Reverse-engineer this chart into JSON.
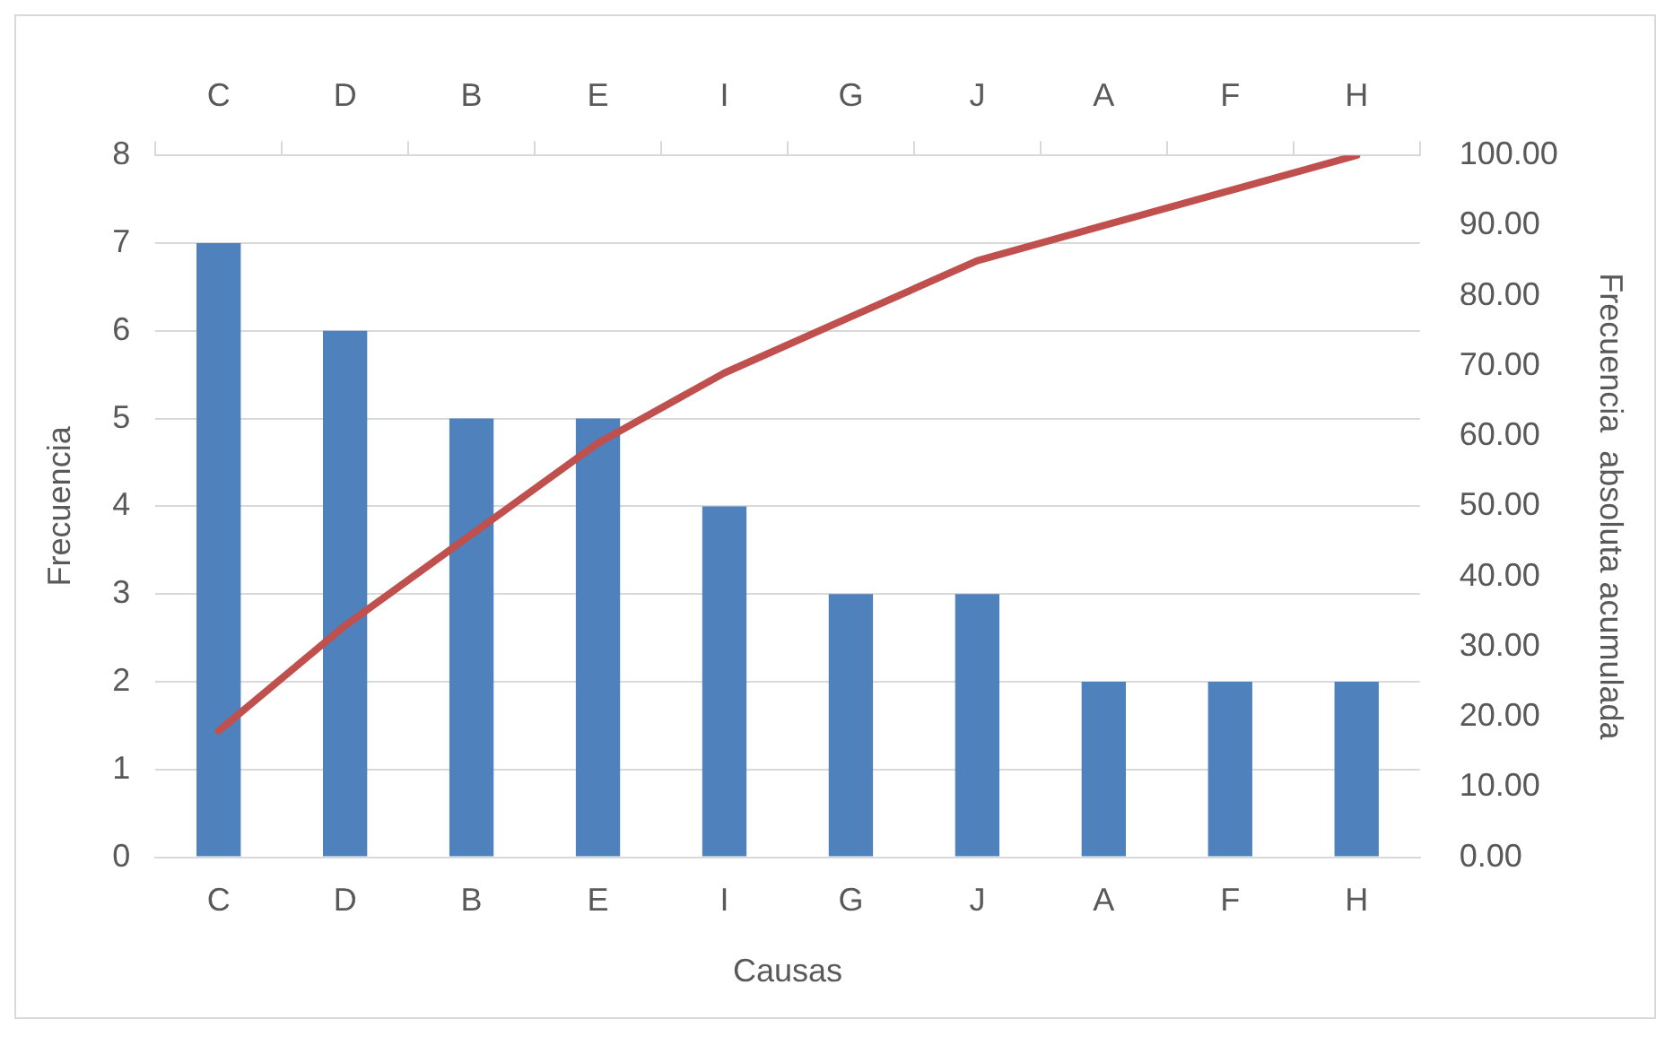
{
  "chart_data": {
    "type": "bar",
    "xlabel": "Causas",
    "ylabel": "Frecuencia",
    "y2label": "Frecuencia  absoluta acumulada",
    "categories": [
      "C",
      "D",
      "B",
      "E",
      "I",
      "G",
      "J",
      "A",
      "F",
      "H"
    ],
    "series": [
      {
        "type": "bar",
        "color": "#4f81bd",
        "values": [
          7,
          6,
          5,
          5,
          4,
          3,
          3,
          2,
          2,
          2
        ]
      },
      {
        "type": "line",
        "axis": "y2",
        "color": "#c0504d",
        "marker": "none",
        "values": [
          18,
          33,
          46,
          59,
          69,
          77,
          85,
          90,
          95,
          100
        ]
      }
    ],
    "ylim": [
      0,
      8
    ],
    "yticks": [
      0,
      1,
      2,
      3,
      4,
      5,
      6,
      7,
      8
    ],
    "y2lim": [
      0,
      100
    ],
    "y2ticks": [
      {
        "value": 0,
        "label": "0.00"
      },
      {
        "value": 10,
        "label": "10.00"
      },
      {
        "value": 20,
        "label": "20.00"
      },
      {
        "value": 30,
        "label": "30.00"
      },
      {
        "value": 40,
        "label": "40.00"
      },
      {
        "value": 50,
        "label": "50.00"
      },
      {
        "value": 60,
        "label": "60.00"
      },
      {
        "value": 70,
        "label": "70.00"
      },
      {
        "value": 80,
        "label": "80.00"
      },
      {
        "value": 90,
        "label": "90.00"
      },
      {
        "value": 100,
        "label": "100.00"
      }
    ],
    "grid": "y",
    "legend": false
  }
}
